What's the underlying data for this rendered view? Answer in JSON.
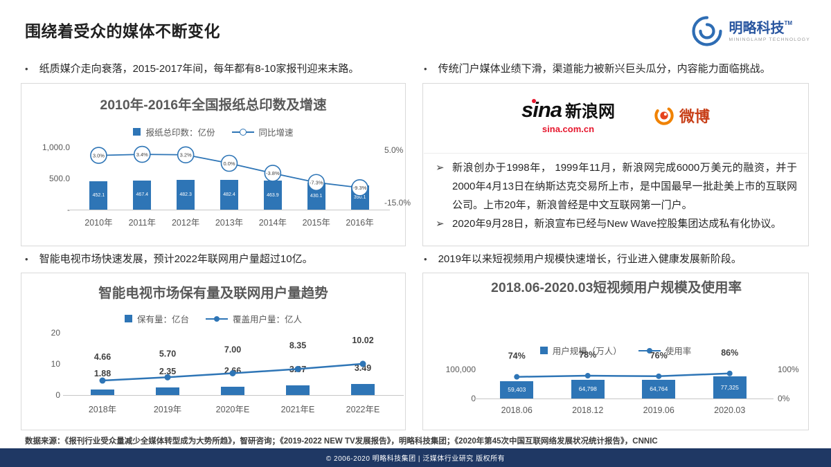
{
  "page": {
    "title": "围绕着受众的媒体不断变化",
    "logo": {
      "name": "明略科技",
      "tm": "TM",
      "subtitle": "MININGLAMP TECHNOLOGY"
    }
  },
  "marker": "•",
  "arrow": "➢",
  "bullets": {
    "paper": "纸质媒介走向衰落，2015-2017年间，每年都有8-10家报刊迎来末路。",
    "portal": "传统门户媒体业绩下滑，渠道能力被新兴巨头瓜分，内容能力面临挑战。",
    "tv": "智能电视市场快速发展，预计2022年联网用户量超过10亿。",
    "video": "2019年以来短视频用户规模快速增长，行业进入健康发展新阶段。"
  },
  "sina_panel": {
    "sina_logo_text": "sina",
    "sina_logo_cn": "新浪网",
    "sina_logo_url": "sina.com.cn",
    "weibo_logo_text": "微博",
    "points": [
      "新浪创办于1998年， 1999年11月，新浪网完成6000万美元的融资，并于2000年4月13日在纳斯达克交易所上市，是中国最早一批赴美上市的互联网公司。上市20年，新浪曾经是中文互联网第一门户。",
      "2020年9月28日，新浪宣布已经与New Wave控股集团达成私有化协议。"
    ]
  },
  "chart_data": [
    {
      "type": "bar+line",
      "title": "2010年-2016年全国报纸总印数及增速",
      "categories": [
        "2010年",
        "2011年",
        "2012年",
        "2013年",
        "2014年",
        "2015年",
        "2016年"
      ],
      "bars": {
        "name": "报纸总印数：亿份",
        "values": [
          452.1,
          467.4,
          482.3,
          482.4,
          463.9,
          430.1,
          390.1
        ],
        "labels": [
          "452.1",
          "467.4",
          "482.3",
          "482.4",
          "463.9",
          "430.1",
          "390.1"
        ]
      },
      "line": {
        "name": "同比增速",
        "axis": "right",
        "values": [
          3.0,
          3.4,
          3.2,
          0.0,
          -3.8,
          -7.3,
          -9.3
        ],
        "labels": [
          "3.0%",
          "3.4%",
          "3.2%",
          "0.0%",
          "-3.8%",
          "-7.3%",
          "-9.3%"
        ]
      },
      "y_left": {
        "ticks": [
          "1,000.0",
          "500.0",
          "-"
        ],
        "min": 0,
        "max": 1000
      },
      "y_right": {
        "ticks": [
          "5.0%",
          "-15.0%"
        ],
        "min": -15,
        "max": 5
      },
      "legend_position": "top",
      "grid": false
    },
    {
      "type": "bar+line",
      "title": "智能电视市场保有量及联网用户量趋势",
      "categories": [
        "2018年",
        "2019年",
        "2020年E",
        "2021年E",
        "2022年E"
      ],
      "bars": {
        "name": "保有量：亿台",
        "values": [
          1.88,
          2.35,
          2.66,
          3.07,
          3.49
        ],
        "labels": [
          "1.88",
          "2.35",
          "2.66",
          "3.07",
          "3.49"
        ]
      },
      "line": {
        "name": "覆盖用户量：亿人",
        "axis": "left",
        "values": [
          4.66,
          5.7,
          7.0,
          8.35,
          10.02
        ],
        "labels": [
          "4.66",
          "5.70",
          "7.00",
          "8.35",
          "10.02"
        ]
      },
      "y_left": {
        "ticks": [
          "20",
          "10",
          "0"
        ],
        "min": 0,
        "max": 20
      },
      "legend_position": "top",
      "grid": false
    },
    {
      "type": "bar+line",
      "title": "2018.06-2020.03短视频用户规模及使用率",
      "categories": [
        "2018.06",
        "2018.12",
        "2019.06",
        "2020.03"
      ],
      "bars": {
        "name": "用户规模（万人）",
        "values": [
          59403,
          64798,
          64764,
          77325
        ],
        "labels": [
          "59,403",
          "64,798",
          "64,764",
          "77,325"
        ]
      },
      "line": {
        "name": "使用率",
        "axis": "right",
        "values": [
          74,
          78,
          76,
          86
        ],
        "labels": [
          "74%",
          "78%",
          "76%",
          "86%"
        ]
      },
      "y_left": {
        "ticks": [
          "100,000",
          "0"
        ],
        "min": 0,
        "max": 100000
      },
      "y_right": {
        "ticks": [
          "100%",
          "0%"
        ],
        "min": 0,
        "max": 100
      },
      "legend_position": "top",
      "grid": false
    }
  ],
  "source_line": "数据来源：《报刊行业受众量减少全媒体转型成为大势所趋》，智研咨询；《2019-2022 NEW TV发展报告》，明略科技集团；《2020年第45次中国互联网络发展状况统计报告》，CNNIC",
  "footer": "© 2006-2020 明略科技集团 | 泛媒体行业研究 版权所有",
  "colors": {
    "accent": "#2E75B6",
    "navy": "#1F3864",
    "sina_red": "#E6162D",
    "weibo_orange": "#F08200",
    "weibo_red": "#E6431E",
    "chart_title_gray": "#595959"
  }
}
